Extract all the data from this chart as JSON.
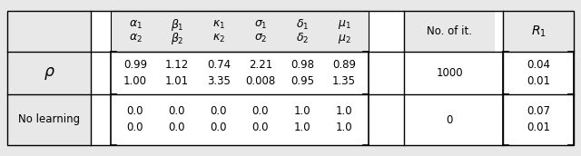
{
  "header_row1": [
    "$\\alpha_1$",
    "$\\beta_1$",
    "$\\kappa_1$",
    "$\\sigma_1$",
    "$\\delta_1$",
    "$\\mu_1$"
  ],
  "header_row2": [
    "$\\alpha_2$",
    "$\\beta_2$",
    "$\\kappa_2$",
    "$\\sigma_2$",
    "$\\delta_2$",
    "$\\mu_2$"
  ],
  "rho_row1": [
    "0.99",
    "1.12",
    "0.74",
    "2.21",
    "0.98",
    "0.89"
  ],
  "rho_row2": [
    "1.00",
    "1.01",
    "3.35",
    "0.008",
    "0.95",
    "1.35"
  ],
  "no_learn_row1": [
    "0.0",
    "0.0",
    "0.0",
    "0.0",
    "1.0",
    "1.0"
  ],
  "no_learn_row2": [
    "0.0",
    "0.0",
    "0.0",
    "0.0",
    "1.0",
    "1.0"
  ],
  "col_no_it_header": "No. of it.",
  "rho_no_it": "1000",
  "no_learn_no_it": "0",
  "rho_r1": [
    "0.04",
    "0.01"
  ],
  "no_learn_r1": [
    "0.07",
    "0.01"
  ],
  "fig_bg": "#e8e8e8",
  "cell_bg_white": "#ffffff",
  "cell_bg_gray": "#e8e8e8",
  "line_color": "#000000",
  "font_size_data": 8.5,
  "font_size_header": 9.0,
  "font_size_label": 10.5
}
